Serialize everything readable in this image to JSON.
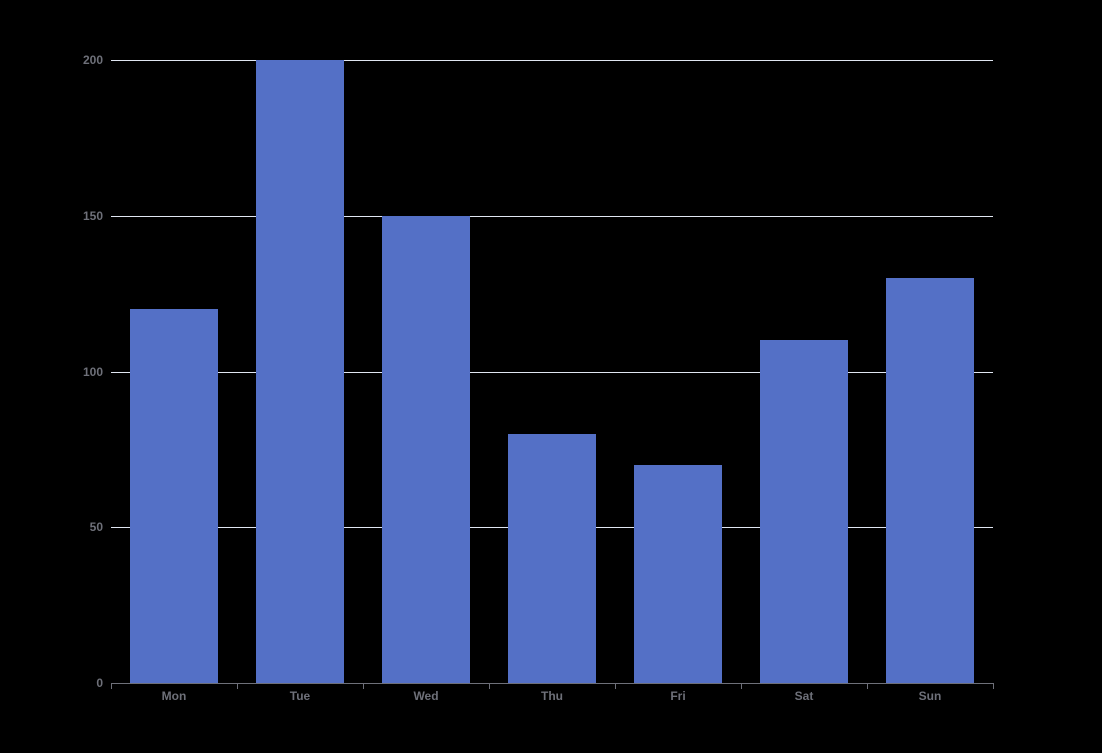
{
  "chart_data": {
    "type": "bar",
    "title": "",
    "xlabel": "",
    "ylabel": "",
    "categories": [
      "Mon",
      "Tue",
      "Wed",
      "Thu",
      "Fri",
      "Sat",
      "Sun"
    ],
    "values": [
      120,
      200,
      150,
      80,
      70,
      110,
      130
    ],
    "series": [
      {
        "name": "series0",
        "values": [
          120,
          200,
          150,
          80,
          70,
          110,
          130
        ]
      }
    ],
    "ylim": [
      0,
      200
    ],
    "yticks": [
      0,
      50,
      100,
      150,
      200
    ],
    "ytick_labels": [
      "0",
      "50",
      "100",
      "150",
      "200"
    ],
    "grid": true,
    "legend_position": "none",
    "colors": {
      "background": "#000000",
      "bar": "#5470C6",
      "grid_line": "#E0E6F1",
      "axis_line": "#6E7079",
      "axis_label": "#6E7079"
    }
  }
}
